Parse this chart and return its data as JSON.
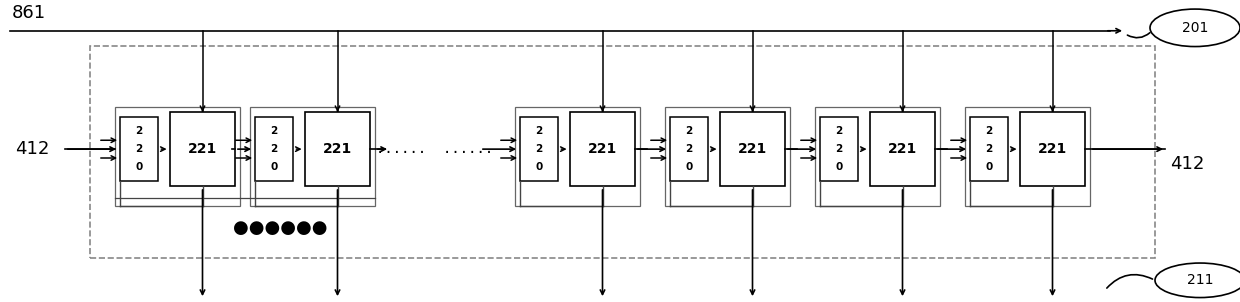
{
  "bg_color": "#ffffff",
  "line_color": "#000000",
  "dashed_color": "#888888",
  "box_color": "#ffffff",
  "label_861": "861",
  "label_412_left": "412",
  "label_412_right": "412",
  "label_201": "201",
  "label_211": "211",
  "label_221": "221",
  "dots_horiz": "......  ......",
  "dots_bottom": "●●●●●●",
  "fig_width": 12.4,
  "fig_height": 3.02,
  "dpi": 100,
  "xlim": [
    0,
    124
  ],
  "ylim": [
    0,
    30.2
  ]
}
